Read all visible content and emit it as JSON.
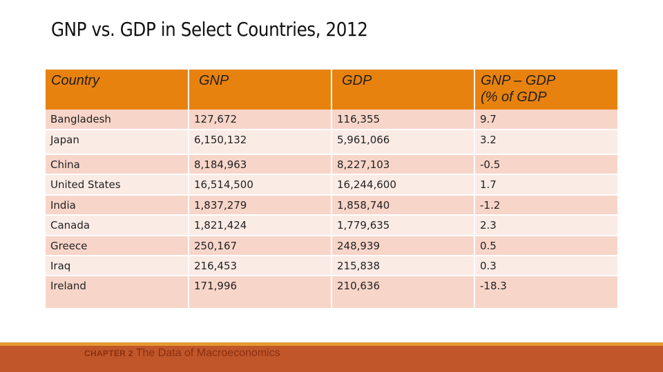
{
  "slide": {
    "title": "GNP vs. GDP in Select Countries, 2012"
  },
  "table": {
    "headers": {
      "country": "Country",
      "gnp": "GNP",
      "gdp": "GDP",
      "diff_line1": "GNP – GDP",
      "diff_line2": "(% of GDP"
    },
    "rows": [
      {
        "country": "Bangladesh",
        "gnp": "127,672",
        "gdp": "116,355",
        "diff": "9.7"
      },
      {
        "country": "Japan",
        "gnp": "6,150,132",
        "gdp": "5,961,066",
        "diff": "3.2"
      },
      {
        "country": "China",
        "gnp": "8,184,963",
        "gdp": "8,227,103",
        "diff": "-0.5"
      },
      {
        "country": "United States",
        "gnp": "16,514,500",
        "gdp": "16,244,600",
        "diff": "1.7"
      },
      {
        "country": "India",
        "gnp": "1,837,279",
        "gdp": "1,858,740",
        "diff": "-1.2"
      },
      {
        "country": "Canada",
        "gnp": "1,821,424",
        "gdp": "1,779,635",
        "diff": "2.3"
      },
      {
        "country": "Greece",
        "gnp": "250,167",
        "gdp": "248,939",
        "diff": "0.5"
      },
      {
        "country": "Iraq",
        "gnp": "216,453",
        "gdp": "215,838",
        "diff": "0.3"
      },
      {
        "country": "Ireland",
        "gnp": "171,996",
        "gdp": "210,636",
        "diff": "-18.3"
      }
    ]
  },
  "footer": {
    "chapter": "CHAPTER 2",
    "topic": "The Data of Macroeconomics"
  },
  "colors": {
    "header_fill": "#e8820e",
    "row_odd_fill": "#f7d5c9",
    "row_even_fill": "#fbebe5",
    "footer_band": "#c0562a",
    "footer_accent": "#e59a2f",
    "footer_text": "#8a2f12"
  }
}
